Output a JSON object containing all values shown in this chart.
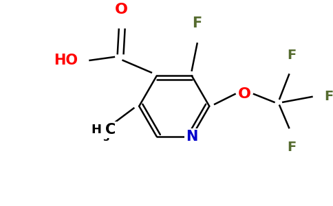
{
  "background_color": "#ffffff",
  "bond_color": "#000000",
  "colors": {
    "C": "#000000",
    "N": "#0000cc",
    "O": "#ff0000",
    "F": "#556b2f",
    "H": "#000000"
  },
  "figsize": [
    4.84,
    3.0
  ],
  "dpi": 100,
  "lw": 1.8,
  "fs": 14
}
